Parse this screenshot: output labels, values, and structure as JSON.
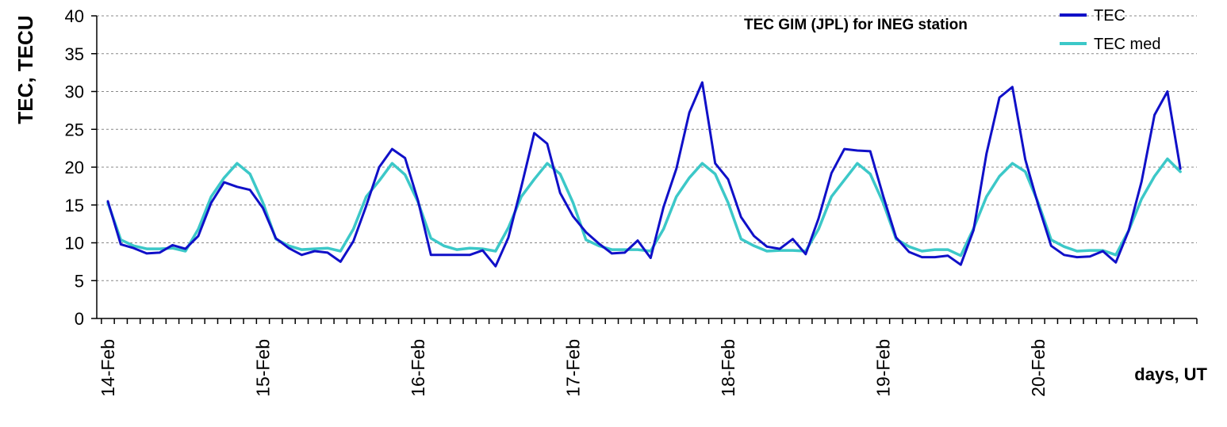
{
  "chart_data": {
    "type": "line",
    "title": "TEC GIM (JPL) for INEG station",
    "ylabel": "TEC, TECU",
    "xlabel": "days, UT",
    "ylim": [
      0,
      40
    ],
    "yticks": [
      0,
      5,
      10,
      15,
      20,
      25,
      30,
      35,
      40
    ],
    "xticks": [
      "14-Feb",
      "15-Feb",
      "16-Feb",
      "17-Feb",
      "18-Feb",
      "19-Feb",
      "20-Feb"
    ],
    "samples_per_day": 12,
    "grid": "horizontal dashed",
    "legend_position": "top-right",
    "series": [
      {
        "name": "TEC",
        "color": "#1010c8",
        "values": [
          15.5,
          9.8,
          9.3,
          8.6,
          8.7,
          9.7,
          9.2,
          10.9,
          15.3,
          18.0,
          17.4,
          17.0,
          14.6,
          10.6,
          9.3,
          8.4,
          8.9,
          8.7,
          7.5,
          10.2,
          14.9,
          20.0,
          22.4,
          21.2,
          15.6,
          8.4,
          8.4,
          8.4,
          8.4,
          9.0,
          6.9,
          10.7,
          17.4,
          24.5,
          23.1,
          16.6,
          13.5,
          11.4,
          9.9,
          8.6,
          8.7,
          10.3,
          8.0,
          14.7,
          19.8,
          27.2,
          31.2,
          20.5,
          18.4,
          13.4,
          10.9,
          9.5,
          9.2,
          10.5,
          8.5,
          13.2,
          19.2,
          22.4,
          22.2,
          22.1,
          16.2,
          10.7,
          8.8,
          8.1,
          8.1,
          8.3,
          7.1,
          11.7,
          21.8,
          29.2,
          30.6,
          21.0,
          15.0,
          9.6,
          8.4,
          8.1,
          8.2,
          8.9,
          7.4,
          11.6,
          18.1,
          26.9,
          30.0,
          19.8
        ]
      },
      {
        "name": "TEC med",
        "color": "#3cc8c8",
        "values": [
          15.3,
          10.4,
          9.6,
          9.2,
          9.2,
          9.3,
          8.9,
          11.8,
          16.1,
          18.6,
          20.5,
          19.1,
          15.3,
          10.5,
          9.6,
          9.1,
          9.2,
          9.3,
          8.9,
          11.8,
          16.1,
          18.2,
          20.5,
          19.0,
          15.4,
          10.6,
          9.6,
          9.1,
          9.3,
          9.2,
          8.9,
          12.0,
          16.1,
          18.4,
          20.5,
          19.1,
          15.3,
          10.4,
          9.6,
          9.1,
          9.1,
          9.1,
          8.9,
          11.8,
          16.1,
          18.6,
          20.5,
          19.1,
          15.3,
          10.5,
          9.6,
          8.9,
          9.0,
          9.0,
          8.9,
          11.8,
          16.1,
          18.3,
          20.5,
          19.1,
          15.3,
          10.5,
          9.5,
          8.9,
          9.1,
          9.1,
          8.3,
          11.9,
          16.1,
          18.8,
          20.5,
          19.4,
          15.3,
          10.4,
          9.5,
          8.9,
          9.0,
          9.0,
          8.4,
          11.6,
          15.8,
          18.8,
          21.1,
          19.4
        ]
      }
    ]
  }
}
